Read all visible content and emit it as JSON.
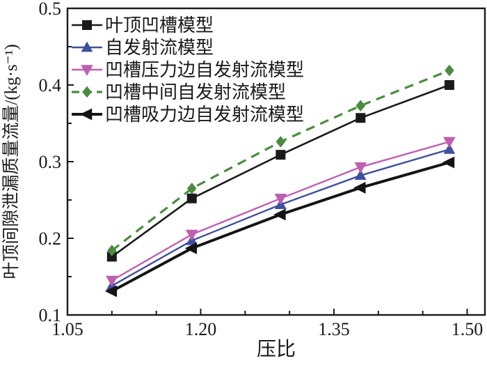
{
  "figure": {
    "background": "#ffffff",
    "frame_color": "#1a1a1a"
  },
  "chart_data": {
    "type": "line",
    "title": "",
    "xlabel": "压比",
    "ylabel": "叶顶间隙泄漏质量流量/(kg·s⁻¹)",
    "xlim": [
      1.05,
      1.52
    ],
    "ylim": [
      0.1,
      0.5
    ],
    "grid": false,
    "legend_position": "top-left",
    "x_major_ticks": [
      1.05,
      1.2,
      1.35,
      1.5
    ],
    "x_tick_labels": [
      "1.05",
      "1.20",
      "1.35",
      "1.50"
    ],
    "x_minor_step": 0.05,
    "y_major_ticks": [
      0.1,
      0.2,
      0.3,
      0.4,
      0.5
    ],
    "y_tick_labels": [
      "0.1",
      "0.2",
      "0.3",
      "0.4",
      "0.5"
    ],
    "y_minor_step": 0.05,
    "x": [
      1.1,
      1.19,
      1.29,
      1.38,
      1.48
    ],
    "series": [
      {
        "name": "叶顶凹槽模型",
        "values": [
          0.176,
          0.252,
          0.309,
          0.357,
          0.4
        ],
        "color": "#1a1a1a",
        "marker": "square",
        "line": "solid",
        "width": 2.6
      },
      {
        "name": "自发射流模型",
        "values": [
          0.138,
          0.197,
          0.244,
          0.282,
          0.316
        ],
        "color": "#3e4f9e",
        "marker": "triangle-up",
        "line": "solid",
        "width": 2.4
      },
      {
        "name": "凹槽压力边自发射流模型",
        "values": [
          0.145,
          0.205,
          0.252,
          0.293,
          0.326
        ],
        "color": "#bf5fb1",
        "marker": "triangle-down",
        "line": "solid",
        "width": 2.4
      },
      {
        "name": "凹槽中间自发射流模型",
        "values": [
          0.184,
          0.265,
          0.326,
          0.373,
          0.419
        ],
        "color": "#4a8b3e",
        "marker": "diamond",
        "line": "dashed",
        "width": 3.2
      },
      {
        "name": "凹槽吸力边自发射流模型",
        "values": [
          0.131,
          0.187,
          0.231,
          0.266,
          0.299
        ],
        "color": "#141414",
        "marker": "triangle-left",
        "line": "solid",
        "width": 4.0
      }
    ]
  }
}
